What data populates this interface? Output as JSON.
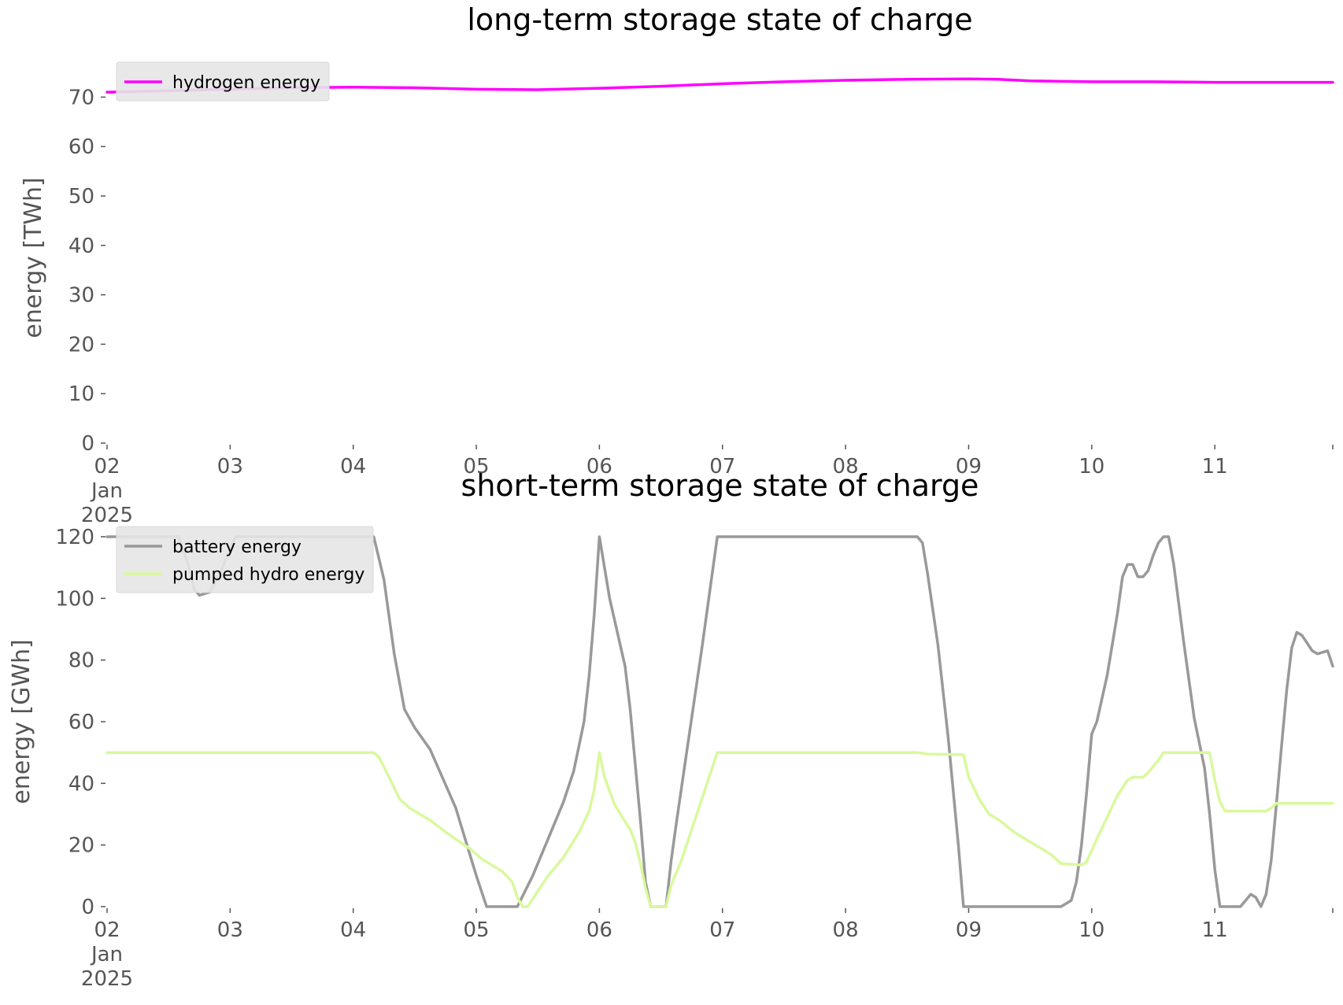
{
  "chart_data": [
    {
      "type": "line",
      "title": "long-term storage state of charge",
      "ylabel": "energy [TWh]",
      "xlabel": "",
      "ylim": [
        0,
        75
      ],
      "yticks": [
        0,
        10,
        20,
        30,
        40,
        50,
        60,
        70
      ],
      "xlim": [
        "2025-01-02",
        "2025-01-11T23:00"
      ],
      "xtick_labels": [
        "02\nJan\n2025",
        "03",
        "04",
        "05",
        "06",
        "07",
        "08",
        "09",
        "10",
        "11"
      ],
      "legend": "upper-left",
      "grid": false,
      "series": [
        {
          "name": "hydrogen energy",
          "color": "#ff00ff",
          "points": [
            [
              "2025-01-02T00:00",
              71.0
            ],
            [
              "2025-01-02T12:00",
              71.3
            ],
            [
              "2025-01-03T00:00",
              71.6
            ],
            [
              "2025-01-03T12:00",
              71.9
            ],
            [
              "2025-01-04T00:00",
              72.0
            ],
            [
              "2025-01-04T12:00",
              71.9
            ],
            [
              "2025-01-05T00:00",
              71.6
            ],
            [
              "2025-01-05T12:00",
              71.5
            ],
            [
              "2025-01-06T00:00",
              71.8
            ],
            [
              "2025-01-06T12:00",
              72.2
            ],
            [
              "2025-01-07T00:00",
              72.7
            ],
            [
              "2025-01-07T12:00",
              73.1
            ],
            [
              "2025-01-08T00:00",
              73.4
            ],
            [
              "2025-01-08T12:00",
              73.6
            ],
            [
              "2025-01-09T00:00",
              73.7
            ],
            [
              "2025-01-09T06:00",
              73.6
            ],
            [
              "2025-01-09T12:00",
              73.3
            ],
            [
              "2025-01-10T00:00",
              73.1
            ],
            [
              "2025-01-10T12:00",
              73.1
            ],
            [
              "2025-01-11T00:00",
              73.0
            ],
            [
              "2025-01-11T23:00",
              73.0
            ]
          ]
        }
      ]
    },
    {
      "type": "line",
      "title": "short-term storage state of charge",
      "ylabel": "energy [GWh]",
      "xlabel": "",
      "ylim": [
        0,
        120
      ],
      "yticks": [
        0,
        20,
        40,
        60,
        80,
        100,
        120
      ],
      "xlim": [
        "2025-01-02",
        "2025-01-11T23:00"
      ],
      "xtick_labels": [
        "02\nJan\n2025",
        "03",
        "04",
        "05",
        "06",
        "07",
        "08",
        "09",
        "10",
        "11"
      ],
      "legend": "upper-left",
      "grid": false,
      "series": [
        {
          "name": "battery energy",
          "color": "#999999",
          "points": [
            [
              "2025-01-02T00:00",
              120
            ],
            [
              "2025-01-02T14:00",
              120
            ],
            [
              "2025-01-02T16:00",
              110
            ],
            [
              "2025-01-02T17:00",
              103
            ],
            [
              "2025-01-02T18:00",
              101
            ],
            [
              "2025-01-02T20:00",
              102
            ],
            [
              "2025-01-02T22:00",
              108
            ],
            [
              "2025-01-03T01:00",
              120
            ],
            [
              "2025-01-04T04:00",
              120
            ],
            [
              "2025-01-04T06:00",
              106
            ],
            [
              "2025-01-04T08:00",
              82
            ],
            [
              "2025-01-04T10:00",
              64
            ],
            [
              "2025-01-04T12:00",
              58
            ],
            [
              "2025-01-04T15:00",
              51
            ],
            [
              "2025-01-04T20:00",
              32
            ],
            [
              "2025-01-04T22:00",
              21
            ],
            [
              "2025-01-05T00:00",
              10
            ],
            [
              "2025-01-05T02:00",
              0
            ],
            [
              "2025-01-05T08:00",
              0
            ],
            [
              "2025-01-05T11:00",
              10
            ],
            [
              "2025-01-05T14:00",
              22
            ],
            [
              "2025-01-05T17:00",
              34
            ],
            [
              "2025-01-05T19:00",
              44
            ],
            [
              "2025-01-05T21:00",
              60
            ],
            [
              "2025-01-05T22:00",
              75
            ],
            [
              "2025-01-05T23:00",
              95
            ],
            [
              "2025-01-06T00:00",
              120
            ],
            [
              "2025-01-06T02:00",
              100
            ],
            [
              "2025-01-06T05:00",
              78
            ],
            [
              "2025-01-06T06:00",
              64
            ],
            [
              "2025-01-06T07:00",
              46
            ],
            [
              "2025-01-06T08:00",
              28
            ],
            [
              "2025-01-06T09:00",
              8
            ],
            [
              "2025-01-06T10:00",
              0
            ],
            [
              "2025-01-06T13:00",
              0
            ],
            [
              "2025-01-06T14:00",
              15
            ],
            [
              "2025-01-06T15:00",
              27
            ],
            [
              "2025-01-06T17:00",
              50
            ],
            [
              "2025-01-06T20:00",
              84
            ],
            [
              "2025-01-06T23:00",
              120
            ],
            [
              "2025-01-08T14:00",
              120
            ],
            [
              "2025-01-08T15:00",
              118
            ],
            [
              "2025-01-08T16:00",
              108
            ],
            [
              "2025-01-08T18:00",
              85
            ],
            [
              "2025-01-08T20:00",
              55
            ],
            [
              "2025-01-08T22:00",
              20
            ],
            [
              "2025-01-08T23:00",
              0
            ],
            [
              "2025-01-09T18:00",
              0
            ],
            [
              "2025-01-09T20:00",
              2
            ],
            [
              "2025-01-09T21:00",
              8
            ],
            [
              "2025-01-09T22:00",
              20
            ],
            [
              "2025-01-09T23:00",
              37
            ],
            [
              "2025-01-10T00:00",
              56
            ],
            [
              "2025-01-10T01:00",
              60
            ],
            [
              "2025-01-10T03:00",
              75
            ],
            [
              "2025-01-10T05:00",
              95
            ],
            [
              "2025-01-10T06:00",
              107
            ],
            [
              "2025-01-10T07:00",
              111
            ],
            [
              "2025-01-10T08:00",
              111
            ],
            [
              "2025-01-10T09:00",
              107
            ],
            [
              "2025-01-10T10:00",
              107
            ],
            [
              "2025-01-10T11:00",
              109
            ],
            [
              "2025-01-10T12:00",
              114
            ],
            [
              "2025-01-10T13:00",
              118
            ],
            [
              "2025-01-10T14:00",
              120
            ],
            [
              "2025-01-10T15:00",
              120
            ],
            [
              "2025-01-10T16:00",
              111
            ],
            [
              "2025-01-10T18:00",
              85
            ],
            [
              "2025-01-10T20:00",
              61
            ],
            [
              "2025-01-10T22:00",
              45
            ],
            [
              "2025-01-10T23:00",
              30
            ],
            [
              "2025-01-11T00:00",
              12
            ],
            [
              "2025-01-11T01:00",
              0
            ],
            [
              "2025-01-11T05:00",
              0
            ],
            [
              "2025-01-11T06:00",
              2
            ],
            [
              "2025-01-11T07:00",
              4
            ],
            [
              "2025-01-11T08:00",
              3
            ],
            [
              "2025-01-11T09:00",
              0
            ],
            [
              "2025-01-11T10:00",
              4
            ],
            [
              "2025-01-11T11:00",
              15
            ],
            [
              "2025-01-11T12:00",
              33
            ],
            [
              "2025-01-11T13:00",
              52
            ],
            [
              "2025-01-11T14:00",
              70
            ],
            [
              "2025-01-11T15:00",
              84
            ],
            [
              "2025-01-11T16:00",
              89
            ],
            [
              "2025-01-11T17:00",
              88
            ],
            [
              "2025-01-11T19:00",
              83
            ],
            [
              "2025-01-11T20:00",
              82
            ],
            [
              "2025-01-11T22:00",
              83
            ],
            [
              "2025-01-11T23:00",
              78
            ]
          ]
        },
        {
          "name": "pumped hydro energy",
          "color": "#d9f99d",
          "points": [
            [
              "2025-01-02T00:00",
              50
            ],
            [
              "2025-01-04T04:00",
              50
            ],
            [
              "2025-01-04T05:00",
              48.5
            ],
            [
              "2025-01-04T07:00",
              42
            ],
            [
              "2025-01-04T09:00",
              35
            ],
            [
              "2025-01-04T11:00",
              32
            ],
            [
              "2025-01-04T15:00",
              28
            ],
            [
              "2025-01-04T19:00",
              23
            ],
            [
              "2025-01-04T23:00",
              18.5
            ],
            [
              "2025-01-05T01:00",
              15.5
            ],
            [
              "2025-01-05T03:00",
              13.5
            ],
            [
              "2025-01-05T05:00",
              11.5
            ],
            [
              "2025-01-05T07:00",
              8
            ],
            [
              "2025-01-05T08:00",
              3
            ],
            [
              "2025-01-05T09:00",
              0
            ],
            [
              "2025-01-05T10:00",
              0
            ],
            [
              "2025-01-05T12:00",
              5
            ],
            [
              "2025-01-05T14:00",
              10
            ],
            [
              "2025-01-05T17:00",
              16
            ],
            [
              "2025-01-05T20:00",
              24
            ],
            [
              "2025-01-05T22:00",
              31
            ],
            [
              "2025-01-05T23:00",
              38
            ],
            [
              "2025-01-06T00:00",
              50
            ],
            [
              "2025-01-06T01:00",
              42
            ],
            [
              "2025-01-06T03:00",
              33
            ],
            [
              "2025-01-06T06:00",
              25
            ],
            [
              "2025-01-06T07:00",
              21
            ],
            [
              "2025-01-06T08:00",
              14
            ],
            [
              "2025-01-06T09:00",
              6
            ],
            [
              "2025-01-06T10:00",
              0
            ],
            [
              "2025-01-06T13:00",
              0
            ],
            [
              "2025-01-06T14:00",
              7
            ],
            [
              "2025-01-06T16:00",
              15
            ],
            [
              "2025-01-06T19:00",
              30
            ],
            [
              "2025-01-06T23:00",
              50
            ],
            [
              "2025-01-08T14:00",
              50
            ],
            [
              "2025-01-08T16:00",
              49.5
            ],
            [
              "2025-01-08T23:00",
              49.3
            ],
            [
              "2025-01-09T00:00",
              42
            ],
            [
              "2025-01-09T02:00",
              35
            ],
            [
              "2025-01-09T04:00",
              30
            ],
            [
              "2025-01-09T06:00",
              28
            ],
            [
              "2025-01-09T09:00",
              24
            ],
            [
              "2025-01-09T13:00",
              20
            ],
            [
              "2025-01-09T16:00",
              17
            ],
            [
              "2025-01-09T18:00",
              14
            ],
            [
              "2025-01-09T22:00",
              13.5
            ],
            [
              "2025-01-09T23:00",
              14.5
            ],
            [
              "2025-01-10T01:00",
              22
            ],
            [
              "2025-01-10T03:00",
              29
            ],
            [
              "2025-01-10T05:00",
              36
            ],
            [
              "2025-01-10T07:00",
              41
            ],
            [
              "2025-01-10T08:00",
              42
            ],
            [
              "2025-01-10T10:00",
              42
            ],
            [
              "2025-01-10T11:00",
              43.5
            ],
            [
              "2025-01-10T13:00",
              47.5
            ],
            [
              "2025-01-10T14:00",
              50
            ],
            [
              "2025-01-10T23:00",
              50
            ],
            [
              "2025-01-11T00:00",
              41
            ],
            [
              "2025-01-11T01:00",
              34
            ],
            [
              "2025-01-11T02:00",
              31
            ],
            [
              "2025-01-11T08:00",
              31
            ],
            [
              "2025-01-11T10:00",
              31
            ],
            [
              "2025-01-11T11:00",
              32
            ],
            [
              "2025-01-11T12:00",
              33.5
            ],
            [
              "2025-01-11T23:00",
              33.5
            ]
          ]
        }
      ]
    }
  ]
}
